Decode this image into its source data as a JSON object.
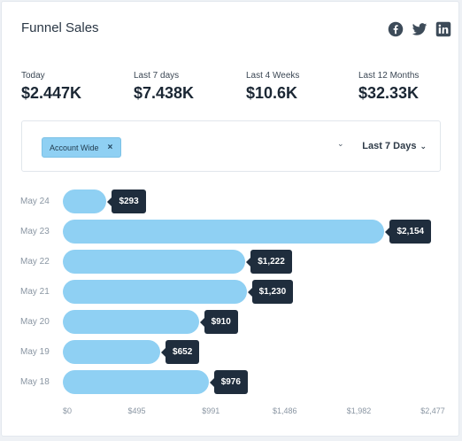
{
  "widget": {
    "title": "Funnel Sales"
  },
  "social": [
    {
      "icon": "facebook-icon"
    },
    {
      "icon": "twitter-icon"
    },
    {
      "icon": "linkedin-icon"
    }
  ],
  "stats": [
    {
      "label": "Today",
      "value": "$2.447K"
    },
    {
      "label": "Last 7 days",
      "value": "$7.438K"
    },
    {
      "label": "Last 4 Weeks",
      "value": "$10.6K"
    },
    {
      "label": "Last 12 Months",
      "value": "$32.33K"
    }
  ],
  "filter": {
    "chip_label": "Account Wide",
    "chip_remove": "×",
    "period_label": "Last 7 Days"
  },
  "colors": {
    "bar": "#8fd0f3",
    "tooltip": "#1f2d3d"
  },
  "chart_data": {
    "type": "bar",
    "orientation": "horizontal",
    "categories": [
      "May 24",
      "May 23",
      "May 22",
      "May 21",
      "May 20",
      "May 19",
      "May 18"
    ],
    "values": [
      293,
      2154,
      1222,
      1230,
      910,
      652,
      976
    ],
    "value_labels": [
      "$293",
      "$2,154",
      "$1,222",
      "$1,230",
      "$910",
      "$652",
      "$976"
    ],
    "xlim": [
      0,
      2477
    ],
    "xticks": [
      "$0",
      "$495",
      "$991",
      "$1,486",
      "$1,982",
      "$2,477"
    ],
    "xtick_values": [
      0,
      495,
      991,
      1486,
      1982,
      2477
    ]
  }
}
